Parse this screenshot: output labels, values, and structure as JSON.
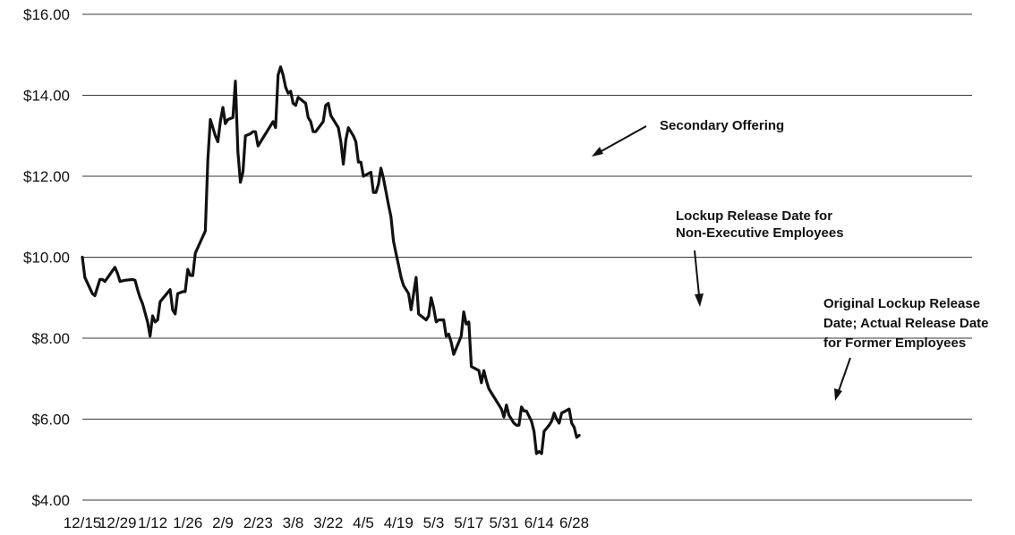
{
  "chart_data": {
    "type": "line",
    "title": "",
    "xlabel": "",
    "ylabel": "",
    "ylim": [
      4,
      16
    ],
    "yticks": [
      4,
      6,
      8,
      10,
      12,
      14,
      16
    ],
    "ytick_labels": [
      "$4.00",
      "$6.00",
      "$8.00",
      "$10.00",
      "$12.00",
      "$14.00",
      "$16.00"
    ],
    "xlim": [
      0,
      195
    ],
    "xticks": [
      0,
      14,
      28,
      42,
      56,
      70,
      84,
      98,
      112,
      126,
      140,
      154,
      168,
      182,
      196
    ],
    "xtick_labels": [
      "12/15",
      "12/29",
      "1/12",
      "1/26",
      "2/9",
      "2/23",
      "3/8",
      "3/22",
      "4/5",
      "4/19",
      "5/3",
      "5/17",
      "5/31",
      "6/14",
      "6/28"
    ],
    "grid": true,
    "series": [
      {
        "values": [
          [
            0,
            10.0
          ],
          [
            1,
            9.5
          ],
          [
            4,
            9.1
          ],
          [
            5,
            9.05
          ],
          [
            7,
            9.45
          ],
          [
            8,
            9.45
          ],
          [
            9,
            9.4
          ],
          [
            13,
            9.75
          ],
          [
            14,
            9.6
          ],
          [
            15,
            9.4
          ],
          [
            17,
            9.43
          ],
          [
            20,
            9.45
          ],
          [
            21,
            9.43
          ],
          [
            22,
            9.2
          ],
          [
            23,
            9.0
          ],
          [
            24,
            8.85
          ],
          [
            26,
            8.4
          ],
          [
            27,
            8.05
          ],
          [
            28,
            8.55
          ],
          [
            29,
            8.4
          ],
          [
            30,
            8.45
          ],
          [
            31,
            8.9
          ],
          [
            35,
            9.2
          ],
          [
            36,
            8.7
          ],
          [
            37,
            8.6
          ],
          [
            38,
            9.1
          ],
          [
            40,
            9.15
          ],
          [
            41,
            9.15
          ],
          [
            42,
            9.7
          ],
          [
            43,
            9.55
          ],
          [
            44,
            9.55
          ],
          [
            45,
            10.1
          ],
          [
            49,
            10.65
          ],
          [
            50,
            12.4
          ],
          [
            51,
            13.4
          ],
          [
            52,
            13.2
          ],
          [
            53,
            13.0
          ],
          [
            54,
            12.85
          ],
          [
            55,
            13.35
          ],
          [
            56,
            13.7
          ],
          [
            57,
            13.3
          ],
          [
            58,
            13.4
          ],
          [
            60,
            13.45
          ],
          [
            61,
            14.35
          ],
          [
            62,
            12.6
          ],
          [
            63,
            11.85
          ],
          [
            64,
            12.1
          ],
          [
            65,
            13.0
          ],
          [
            67,
            13.05
          ],
          [
            68,
            13.1
          ],
          [
            69,
            13.1
          ],
          [
            70,
            12.75
          ],
          [
            72,
            12.95
          ],
          [
            73,
            13.05
          ],
          [
            74,
            13.15
          ],
          [
            75,
            13.25
          ],
          [
            76,
            13.35
          ],
          [
            77,
            13.2
          ],
          [
            78,
            14.5
          ],
          [
            79,
            14.7
          ],
          [
            80,
            14.5
          ],
          [
            81,
            14.2
          ],
          [
            82,
            14.05
          ],
          [
            83,
            14.1
          ],
          [
            84,
            13.8
          ],
          [
            85,
            13.75
          ],
          [
            86,
            13.95
          ],
          [
            87,
            13.9
          ],
          [
            89,
            13.8
          ],
          [
            90,
            13.45
          ],
          [
            91,
            13.35
          ],
          [
            92,
            13.1
          ],
          [
            93,
            13.1
          ],
          [
            96,
            13.35
          ],
          [
            97,
            13.75
          ],
          [
            98,
            13.8
          ],
          [
            99,
            13.5
          ],
          [
            102,
            13.2
          ],
          [
            103,
            12.85
          ],
          [
            104,
            12.3
          ],
          [
            105,
            12.9
          ],
          [
            106,
            13.2
          ],
          [
            108,
            13.0
          ],
          [
            109,
            12.85
          ],
          [
            110,
            12.35
          ],
          [
            111,
            12.35
          ],
          [
            112,
            12.0
          ],
          [
            115,
            12.1
          ],
          [
            116,
            11.6
          ],
          [
            117,
            11.6
          ],
          [
            118,
            11.8
          ],
          [
            119,
            12.2
          ],
          [
            120,
            11.95
          ],
          [
            122,
            11.3
          ],
          [
            123,
            11.0
          ],
          [
            124,
            10.4
          ],
          [
            125,
            10.1
          ],
          [
            126,
            9.8
          ],
          [
            127,
            9.5
          ],
          [
            128,
            9.3
          ],
          [
            130,
            9.1
          ],
          [
            131,
            8.7
          ],
          [
            132,
            9.1
          ],
          [
            133,
            9.5
          ],
          [
            134,
            8.6
          ],
          [
            137,
            8.45
          ],
          [
            138,
            8.55
          ],
          [
            139,
            9.0
          ],
          [
            140,
            8.75
          ],
          [
            141,
            8.4
          ],
          [
            142,
            8.45
          ],
          [
            144,
            8.45
          ],
          [
            145,
            8.05
          ],
          [
            146,
            8.1
          ],
          [
            147,
            7.9
          ],
          [
            148,
            7.6
          ],
          [
            150,
            7.9
          ],
          [
            151,
            8.05
          ],
          [
            152,
            8.65
          ],
          [
            153,
            8.35
          ],
          [
            154,
            8.4
          ],
          [
            155,
            7.3
          ],
          [
            158,
            7.2
          ],
          [
            159,
            6.9
          ],
          [
            160,
            7.2
          ],
          [
            161,
            6.95
          ],
          [
            162,
            6.75
          ],
          [
            165,
            6.45
          ],
          [
            167,
            6.25
          ],
          [
            168,
            6.05
          ],
          [
            169,
            6.35
          ],
          [
            170,
            6.1
          ],
          [
            172,
            5.9
          ],
          [
            173,
            5.85
          ],
          [
            174,
            5.85
          ],
          [
            175,
            6.3
          ],
          [
            176,
            6.2
          ],
          [
            177,
            6.2
          ],
          [
            179,
            5.95
          ],
          [
            180,
            5.7
          ],
          [
            181,
            5.15
          ],
          [
            182,
            5.2
          ],
          [
            183,
            5.15
          ],
          [
            184,
            5.7
          ],
          [
            186,
            5.85
          ],
          [
            187,
            5.95
          ],
          [
            188,
            6.15
          ],
          [
            189,
            6.0
          ],
          [
            190,
            5.9
          ],
          [
            191,
            6.15
          ],
          [
            194,
            6.25
          ],
          [
            195,
            5.9
          ],
          [
            196,
            5.8
          ],
          [
            197,
            5.55
          ],
          [
            198,
            5.6
          ]
        ]
      }
    ],
    "annotations": [
      {
        "lines": [
          "Secondary Offering"
        ],
        "points_to": [
          113,
          12.3
        ]
      },
      {
        "lines": [
          "Lockup Release Date for",
          "Non-Executive Employees"
        ],
        "points_to": [
          136,
          8.75
        ]
      },
      {
        "lines": [
          "Original Lockup Release",
          "Date; Actual Release Date",
          "for Former Employees"
        ],
        "points_to": [
          167,
          6.45
        ]
      }
    ]
  }
}
